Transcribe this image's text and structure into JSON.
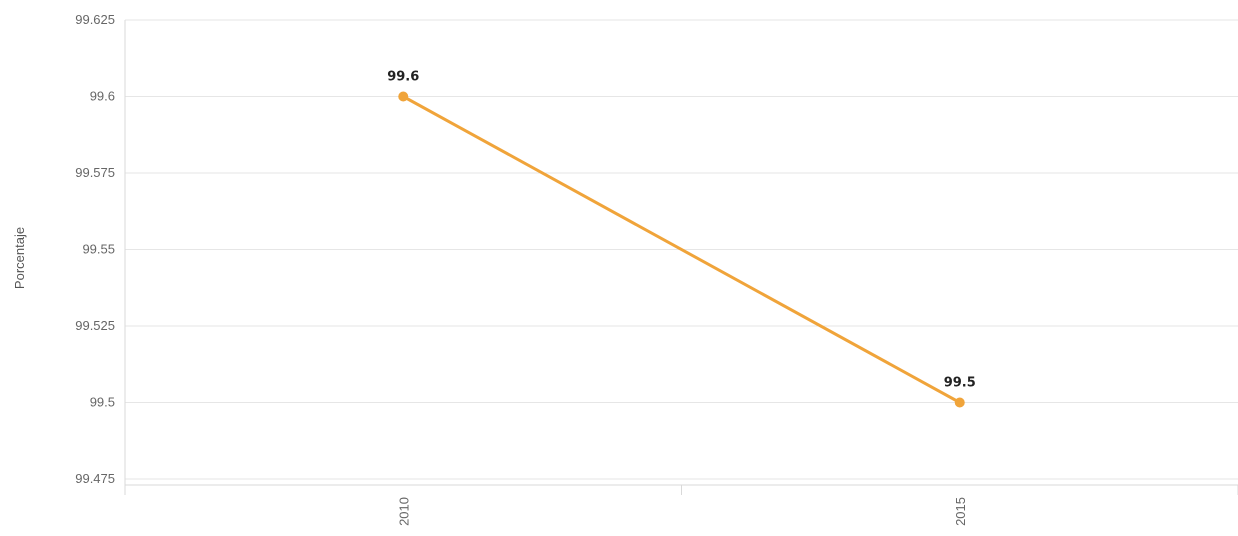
{
  "chart_data": {
    "type": "line",
    "title": "",
    "xlabel": "",
    "ylabel": "Porcentaje",
    "categories": [
      "2010",
      "2015"
    ],
    "series": [
      {
        "values": [
          99.6,
          99.5
        ],
        "color": "#F0A43A",
        "data_labels": [
          "99.6",
          "99.5"
        ]
      }
    ],
    "ylim": [
      99.475,
      99.625
    ],
    "y_ticks": [
      99.475,
      99.5,
      99.525,
      99.55,
      99.575,
      99.6,
      99.625
    ],
    "y_tick_labels": [
      "99.475",
      "99.5",
      "99.525",
      "99.55",
      "99.575",
      "99.6",
      "99.625"
    ],
    "x_tick_labels": [
      "2010",
      "2015"
    ],
    "grid": true,
    "legend": "none"
  }
}
